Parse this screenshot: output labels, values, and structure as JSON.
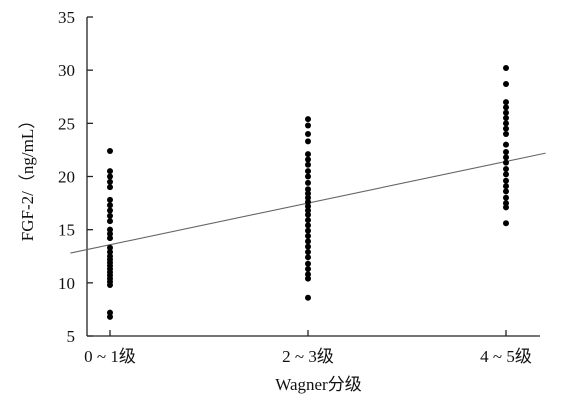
{
  "chart_data": {
    "type": "scatter",
    "title": "",
    "xlabel": "Wagner分级",
    "ylabel": "FGF-2/（ng/mL）",
    "categories": [
      "0 ~ 1级",
      "2 ~ 3级",
      "4 ~ 5级"
    ],
    "ylim": [
      5,
      35
    ],
    "yticks": [
      5,
      10,
      15,
      20,
      25,
      30,
      35
    ],
    "grid": false,
    "series": [
      {
        "category": "0 ~ 1级",
        "values": [
          6.8,
          7.2,
          9.8,
          10.1,
          10.4,
          10.7,
          11.0,
          11.3,
          11.6,
          11.9,
          12.2,
          12.5,
          12.9,
          13.3,
          14.2,
          14.6,
          15.0,
          15.8,
          16.3,
          16.8,
          17.3,
          17.8,
          19.0,
          19.5,
          20.0,
          20.5,
          22.4
        ]
      },
      {
        "category": "2 ~ 3级",
        "values": [
          8.6,
          10.4,
          10.8,
          11.3,
          11.8,
          12.4,
          12.9,
          13.4,
          13.9,
          14.4,
          14.9,
          15.4,
          15.9,
          16.4,
          16.8,
          17.2,
          17.6,
          18.0,
          18.4,
          18.8,
          19.4,
          20.0,
          20.5,
          21.1,
          21.6,
          22.1,
          23.3,
          24.0,
          24.8,
          25.4
        ]
      },
      {
        "category": "4 ~ 5级",
        "values": [
          15.6,
          17.1,
          17.5,
          18.0,
          18.6,
          19.1,
          19.6,
          20.2,
          20.7,
          21.3,
          21.8,
          22.3,
          23.0,
          24.0,
          24.5,
          25.0,
          25.5,
          26.0,
          26.5,
          27.0,
          28.7,
          30.2
        ]
      }
    ],
    "trendline": {
      "x_start": -0.2,
      "y_start": 12.8,
      "x_end": 2.2,
      "y_end": 22.2
    }
  }
}
